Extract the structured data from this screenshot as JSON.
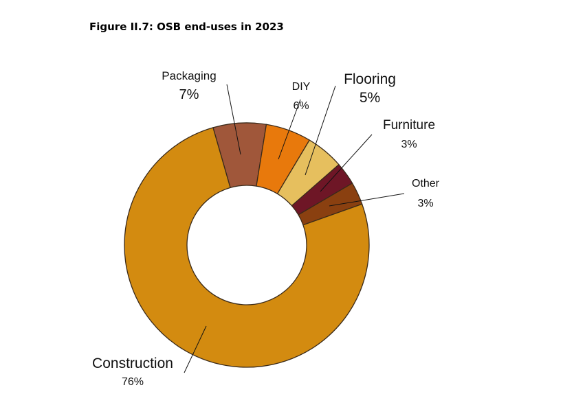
{
  "chart_data": {
    "type": "pie",
    "variant": "donut",
    "title": "Figure II.7: OSB end-uses in 2023",
    "slices": [
      {
        "name": "Packaging",
        "value": 7,
        "label": "7%",
        "color": "#A0573A"
      },
      {
        "name": "DIY",
        "value": 6,
        "label": "6%",
        "color": "#E8790C"
      },
      {
        "name": "Flooring",
        "value": 5,
        "label": "5%",
        "color": "#E6BF5E"
      },
      {
        "name": "Furniture",
        "value": 3,
        "label": "3%",
        "color": "#6E1626"
      },
      {
        "name": "Other",
        "value": 3,
        "label": "3%",
        "color": "#8A4010"
      },
      {
        "name": "Construction",
        "value": 76,
        "label": "76%",
        "color": "#D38B10"
      }
    ],
    "legend": "none (callout labels)"
  }
}
